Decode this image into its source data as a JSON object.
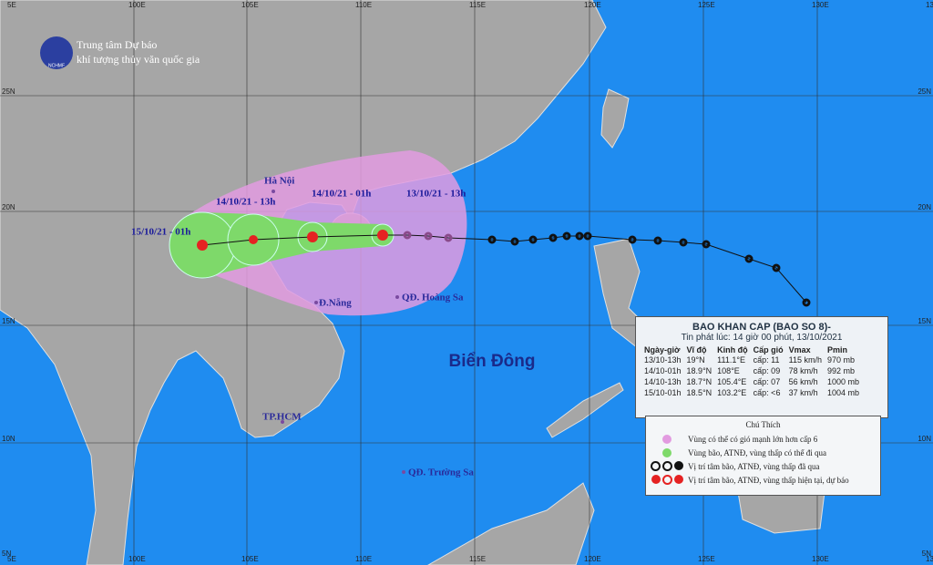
{
  "axes": {
    "top": [
      "5E",
      "100E",
      "105E",
      "110E",
      "115E",
      "120E",
      "125E",
      "130E",
      "13"
    ],
    "left": [
      "25N",
      "20N",
      "15N",
      "10N",
      "5N"
    ],
    "right": [
      "25N",
      "20N",
      "15N",
      "10N",
      "5N"
    ],
    "bottom": [
      "5E",
      "100E",
      "105E",
      "110E",
      "115E",
      "120E",
      "125E",
      "130E",
      "13"
    ]
  },
  "logo": {
    "line1": "Trung tâm Dự báo",
    "line2": "khí tượng thủy văn quốc gia",
    "badge": "NCHMF"
  },
  "places": {
    "hanoi": "Hà Nội",
    "danang": "Đ.Nẵng",
    "hoangsa": "QĐ. Hoàng Sa",
    "biendong": "Biển Đông",
    "hcm": "TP.HCM",
    "truongsa": "QĐ. Trường Sa"
  },
  "forecast_labels": [
    "13/10/21 - 13h",
    "14/10/21 - 01h",
    "14/10/21 - 13h",
    "15/10/21 - 01h"
  ],
  "table": {
    "title": "BAO KHAN CAP (BAO SO 8)-",
    "issued": "Tin phát lúc: 14 giờ 00 phút, 13/10/2021",
    "header": [
      "Ngày-giờ",
      "Vĩ độ",
      "Kinh độ",
      "Cấp gió",
      "Vmax",
      "Pmin"
    ],
    "rows": [
      [
        "13/10-13h",
        "19°N",
        "111.1°E",
        "cấp: 11",
        "115 km/h",
        "970 mb"
      ],
      [
        "14/10-01h",
        "18.9°N",
        "108°E",
        "cấp: 09",
        "78 km/h",
        "992 mb"
      ],
      [
        "14/10-13h",
        "18.7°N",
        "105.4°E",
        "cấp: 07",
        "56 km/h",
        "1000 mb"
      ],
      [
        "15/10-01h",
        "18.5°N",
        "103.2°E",
        "cấp: <6",
        "37 km/h",
        "1004 mb"
      ]
    ]
  },
  "legend": {
    "title": "Chú Thích",
    "items": [
      "Vùng có thể có gió mạnh lớn hơn cấp 6",
      "Vùng bão, ATNĐ, vùng thấp có thể đi qua",
      "Vị trí tâm bão, ATNĐ, vùng thấp đã qua",
      "Vị trí tâm bão, ATNĐ, vùng thấp hiện tại, dự báo"
    ]
  }
}
